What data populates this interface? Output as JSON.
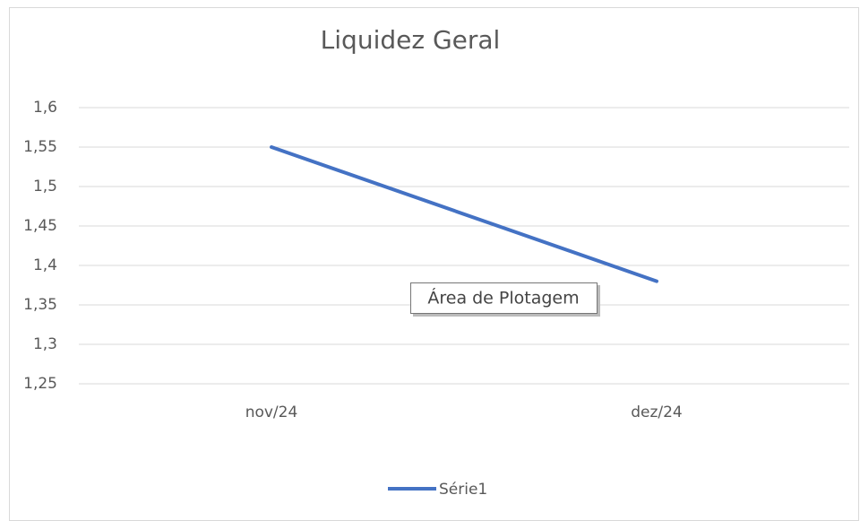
{
  "chart_data": {
    "type": "line",
    "title": "Liquidez Geral",
    "categories": [
      "nov/24",
      "dez/24"
    ],
    "series": [
      {
        "name": "Série1",
        "color": "#4472c4",
        "values": [
          1.55,
          1.38
        ]
      }
    ],
    "ylim": [
      1.25,
      1.6
    ],
    "yticks": [
      {
        "value": 1.25,
        "label": "1,25"
      },
      {
        "value": 1.3,
        "label": "1,3"
      },
      {
        "value": 1.35,
        "label": "1,35"
      },
      {
        "value": 1.4,
        "label": "1,4"
      },
      {
        "value": 1.45,
        "label": "1,45"
      },
      {
        "value": 1.5,
        "label": "1,5"
      },
      {
        "value": 1.55,
        "label": "1,55"
      },
      {
        "value": 1.6,
        "label": "1,6"
      }
    ],
    "grid": true,
    "legend": "bottom",
    "annotation": "Área de Plotagem"
  }
}
